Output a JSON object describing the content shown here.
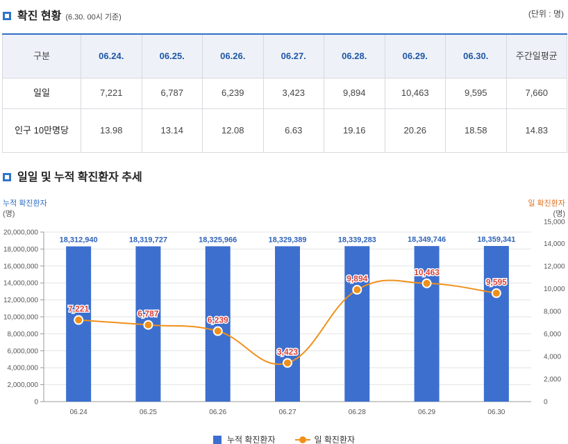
{
  "header": {
    "title": "확진 현황",
    "note": "(6.30. 00시 기준)",
    "unit": "(단위 : 명)"
  },
  "table": {
    "header": [
      "구분",
      "06.24.",
      "06.25.",
      "06.26.",
      "06.27.",
      "06.28.",
      "06.29.",
      "06.30.",
      "주간일평균"
    ],
    "rows": [
      {
        "label": "일일",
        "values": [
          "7,221",
          "6,787",
          "6,239",
          "3,423",
          "9,894",
          "10,463",
          "9,595",
          "7,660"
        ]
      },
      {
        "label": "인구 10만명당",
        "values": [
          "13.98",
          "13.14",
          "12.08",
          "6.63",
          "19.16",
          "20.26",
          "18.58",
          "14.83"
        ]
      }
    ]
  },
  "chart_section": {
    "title": "일일 및 누적 확진환자 추세"
  },
  "chart_data": {
    "type": "bar",
    "categories": [
      "06.24",
      "06.25",
      "06.26",
      "06.27",
      "06.28",
      "06.29",
      "06.30"
    ],
    "left_axis_title": "누적 확진환자",
    "left_axis_unit": "(명)",
    "right_axis_title": "일 확진환자",
    "right_axis_unit": "(명)",
    "left_ylim": [
      0,
      20000000
    ],
    "left_ticks": [
      "20,000,000",
      "18,000,000",
      "16,000,000",
      "14,000,000",
      "12,000,000",
      "10,000,000",
      "8,000,000",
      "6,000,000",
      "4,000,000",
      "2,000,000",
      "0"
    ],
    "right_ylim": [
      0,
      15000
    ],
    "right_ticks": [
      "15,000",
      "14,000",
      "12,000",
      "10,000",
      "8,000",
      "6,000",
      "4,000",
      "2,000",
      "0"
    ],
    "series": [
      {
        "name": "누적 확진환자",
        "type": "bar",
        "axis": "left",
        "values": [
          18312940,
          18319727,
          18325966,
          18329389,
          18339283,
          18349746,
          18359341
        ],
        "labels": [
          "18,312,940",
          "18,319,727",
          "18,325,966",
          "18,329,389",
          "18,339,283",
          "18,349,746",
          "18,359,341"
        ]
      },
      {
        "name": "일 확진환자",
        "type": "line",
        "axis": "right",
        "values": [
          7221,
          6787,
          6239,
          3423,
          9894,
          10463,
          9595
        ],
        "labels": [
          "7,221",
          "6,787",
          "6,239",
          "3,423",
          "9,894",
          "10,463",
          "9,595"
        ]
      }
    ],
    "legend_position": "bottom",
    "grid": true,
    "colors": {
      "bar": "#3d6fce",
      "line": "#f0901a",
      "bar_label": "#2f63b8",
      "line_label": "#d9423a",
      "left_axis_title": "#2f6ec3",
      "right_axis_title": "#e07020"
    }
  }
}
